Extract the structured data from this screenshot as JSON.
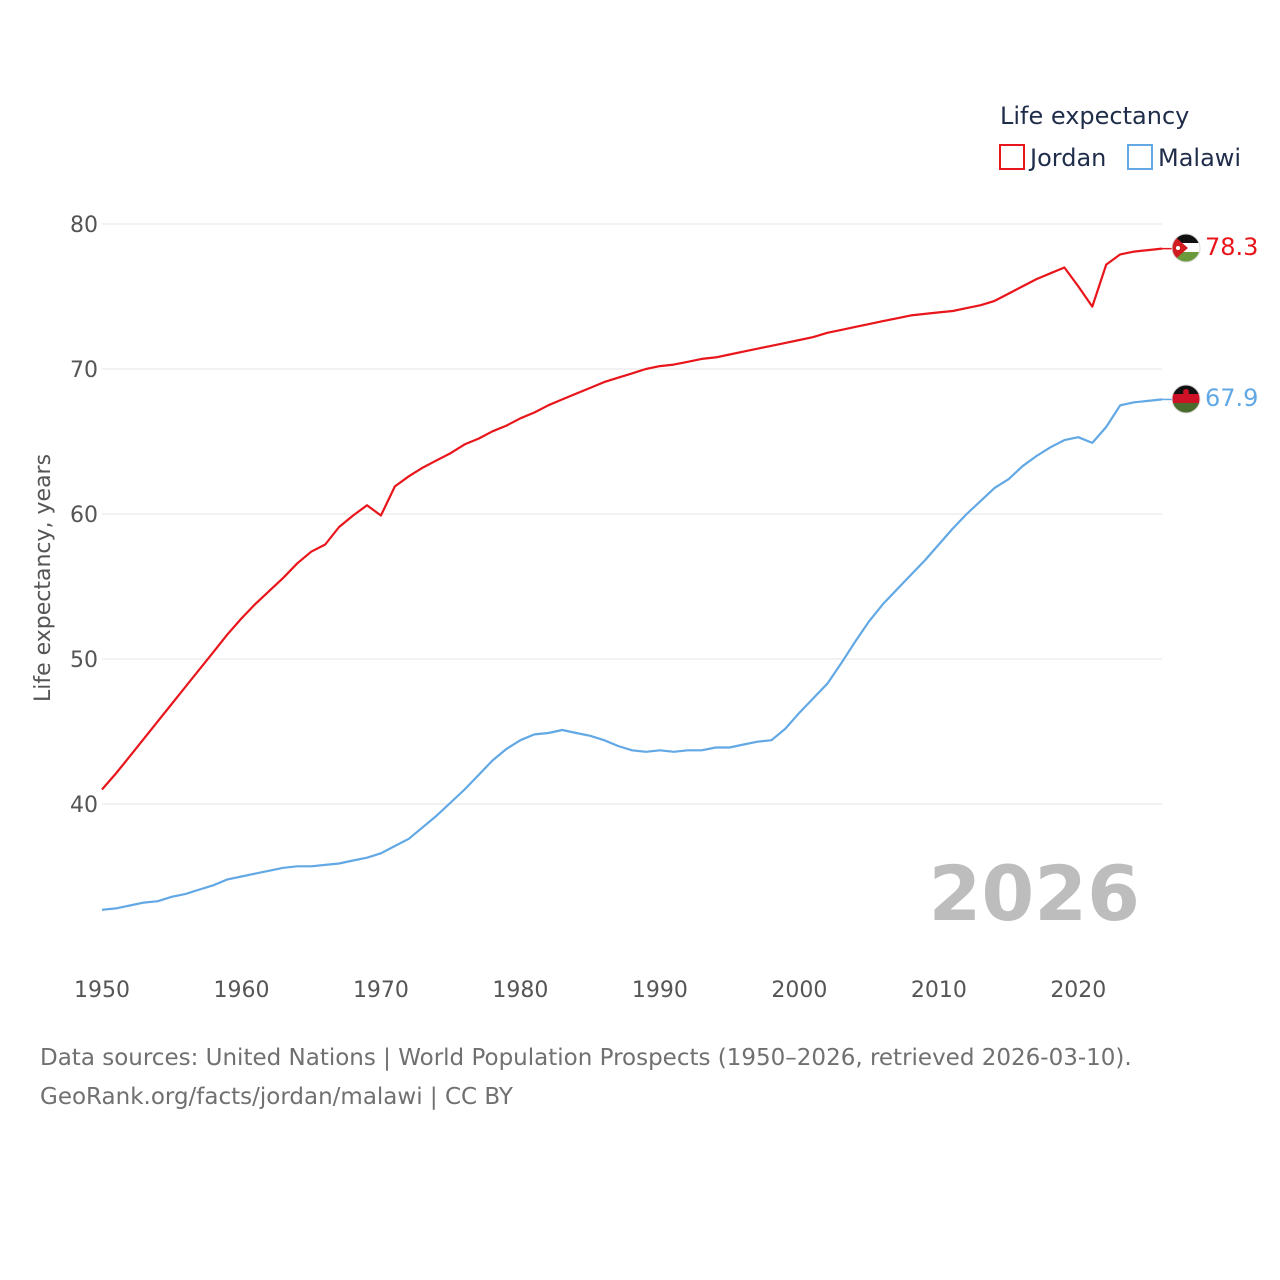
{
  "chart_data": {
    "type": "line",
    "title": "Life expectancy",
    "xlabel": "",
    "ylabel": "Life expectancy, years",
    "xlim": [
      1950,
      2026
    ],
    "ylim": [
      31,
      80
    ],
    "yticks": [
      40,
      50,
      60,
      70,
      80
    ],
    "xticks": [
      1950,
      1960,
      1970,
      1980,
      1990,
      2000,
      2010,
      2020
    ],
    "current_year": "2026",
    "legend_position": "top-right",
    "x": [
      1950,
      1951,
      1952,
      1953,
      1954,
      1955,
      1956,
      1957,
      1958,
      1959,
      1960,
      1961,
      1962,
      1963,
      1964,
      1965,
      1966,
      1967,
      1968,
      1969,
      1970,
      1971,
      1972,
      1973,
      1974,
      1975,
      1976,
      1977,
      1978,
      1979,
      1980,
      1981,
      1982,
      1983,
      1984,
      1985,
      1986,
      1987,
      1988,
      1989,
      1990,
      1991,
      1992,
      1993,
      1994,
      1995,
      1996,
      1997,
      1998,
      1999,
      2000,
      2001,
      2002,
      2003,
      2004,
      2005,
      2006,
      2007,
      2008,
      2009,
      2010,
      2011,
      2012,
      2013,
      2014,
      2015,
      2016,
      2017,
      2018,
      2019,
      2020,
      2021,
      2022,
      2023,
      2024,
      2025,
      2026
    ],
    "series": [
      {
        "name": "Jordan",
        "color": "#e8151b",
        "last_label": "78.3",
        "flag": "jordan-flag-icon",
        "values": [
          41.0,
          42.1,
          43.3,
          44.5,
          45.7,
          46.9,
          48.1,
          49.3,
          50.5,
          51.7,
          52.8,
          53.8,
          54.7,
          55.6,
          56.6,
          57.4,
          57.9,
          59.1,
          59.9,
          60.6,
          59.9,
          61.9,
          62.6,
          63.2,
          63.7,
          64.2,
          64.8,
          65.2,
          65.7,
          66.1,
          66.6,
          67.0,
          67.5,
          67.9,
          68.3,
          68.7,
          69.1,
          69.4,
          69.7,
          70.0,
          70.2,
          70.3,
          70.5,
          70.7,
          70.8,
          71.0,
          71.2,
          71.4,
          71.6,
          71.8,
          72.0,
          72.2,
          72.5,
          72.7,
          72.9,
          73.1,
          73.3,
          73.5,
          73.7,
          73.8,
          73.9,
          74.0,
          74.2,
          74.4,
          74.7,
          75.2,
          75.7,
          76.2,
          76.6,
          77.0,
          75.7,
          74.3,
          77.2,
          77.9,
          78.1,
          78.2,
          78.3
        ]
      },
      {
        "name": "Malawi",
        "color": "#62a8e5",
        "last_label": "67.9",
        "flag": "malawi-flag-icon",
        "values": [
          32.7,
          32.8,
          33.0,
          33.2,
          33.3,
          33.6,
          33.8,
          34.1,
          34.4,
          34.8,
          35.0,
          35.2,
          35.4,
          35.6,
          35.7,
          35.7,
          35.8,
          35.9,
          36.1,
          36.3,
          36.6,
          37.1,
          37.6,
          38.4,
          39.2,
          40.1,
          41.0,
          42.0,
          43.0,
          43.8,
          44.4,
          44.8,
          44.9,
          45.1,
          44.9,
          44.7,
          44.4,
          44.0,
          43.7,
          43.6,
          43.7,
          43.6,
          43.7,
          43.7,
          43.9,
          43.9,
          44.1,
          44.3,
          44.4,
          45.2,
          46.3,
          47.3,
          48.3,
          49.7,
          51.2,
          52.6,
          53.8,
          54.8,
          55.8,
          56.8,
          57.9,
          59.0,
          60.0,
          60.9,
          61.8,
          62.4,
          63.3,
          64.0,
          64.6,
          65.1,
          65.3,
          64.9,
          66.0,
          67.5,
          67.7,
          67.8,
          67.9
        ]
      }
    ]
  },
  "footer": {
    "line1": "Data sources: United Nations | World Population Prospects (1950–2026, retrieved 2026-03-10).",
    "line2": "GeoRank.org/facts/jordan/malawi | CC BY"
  }
}
